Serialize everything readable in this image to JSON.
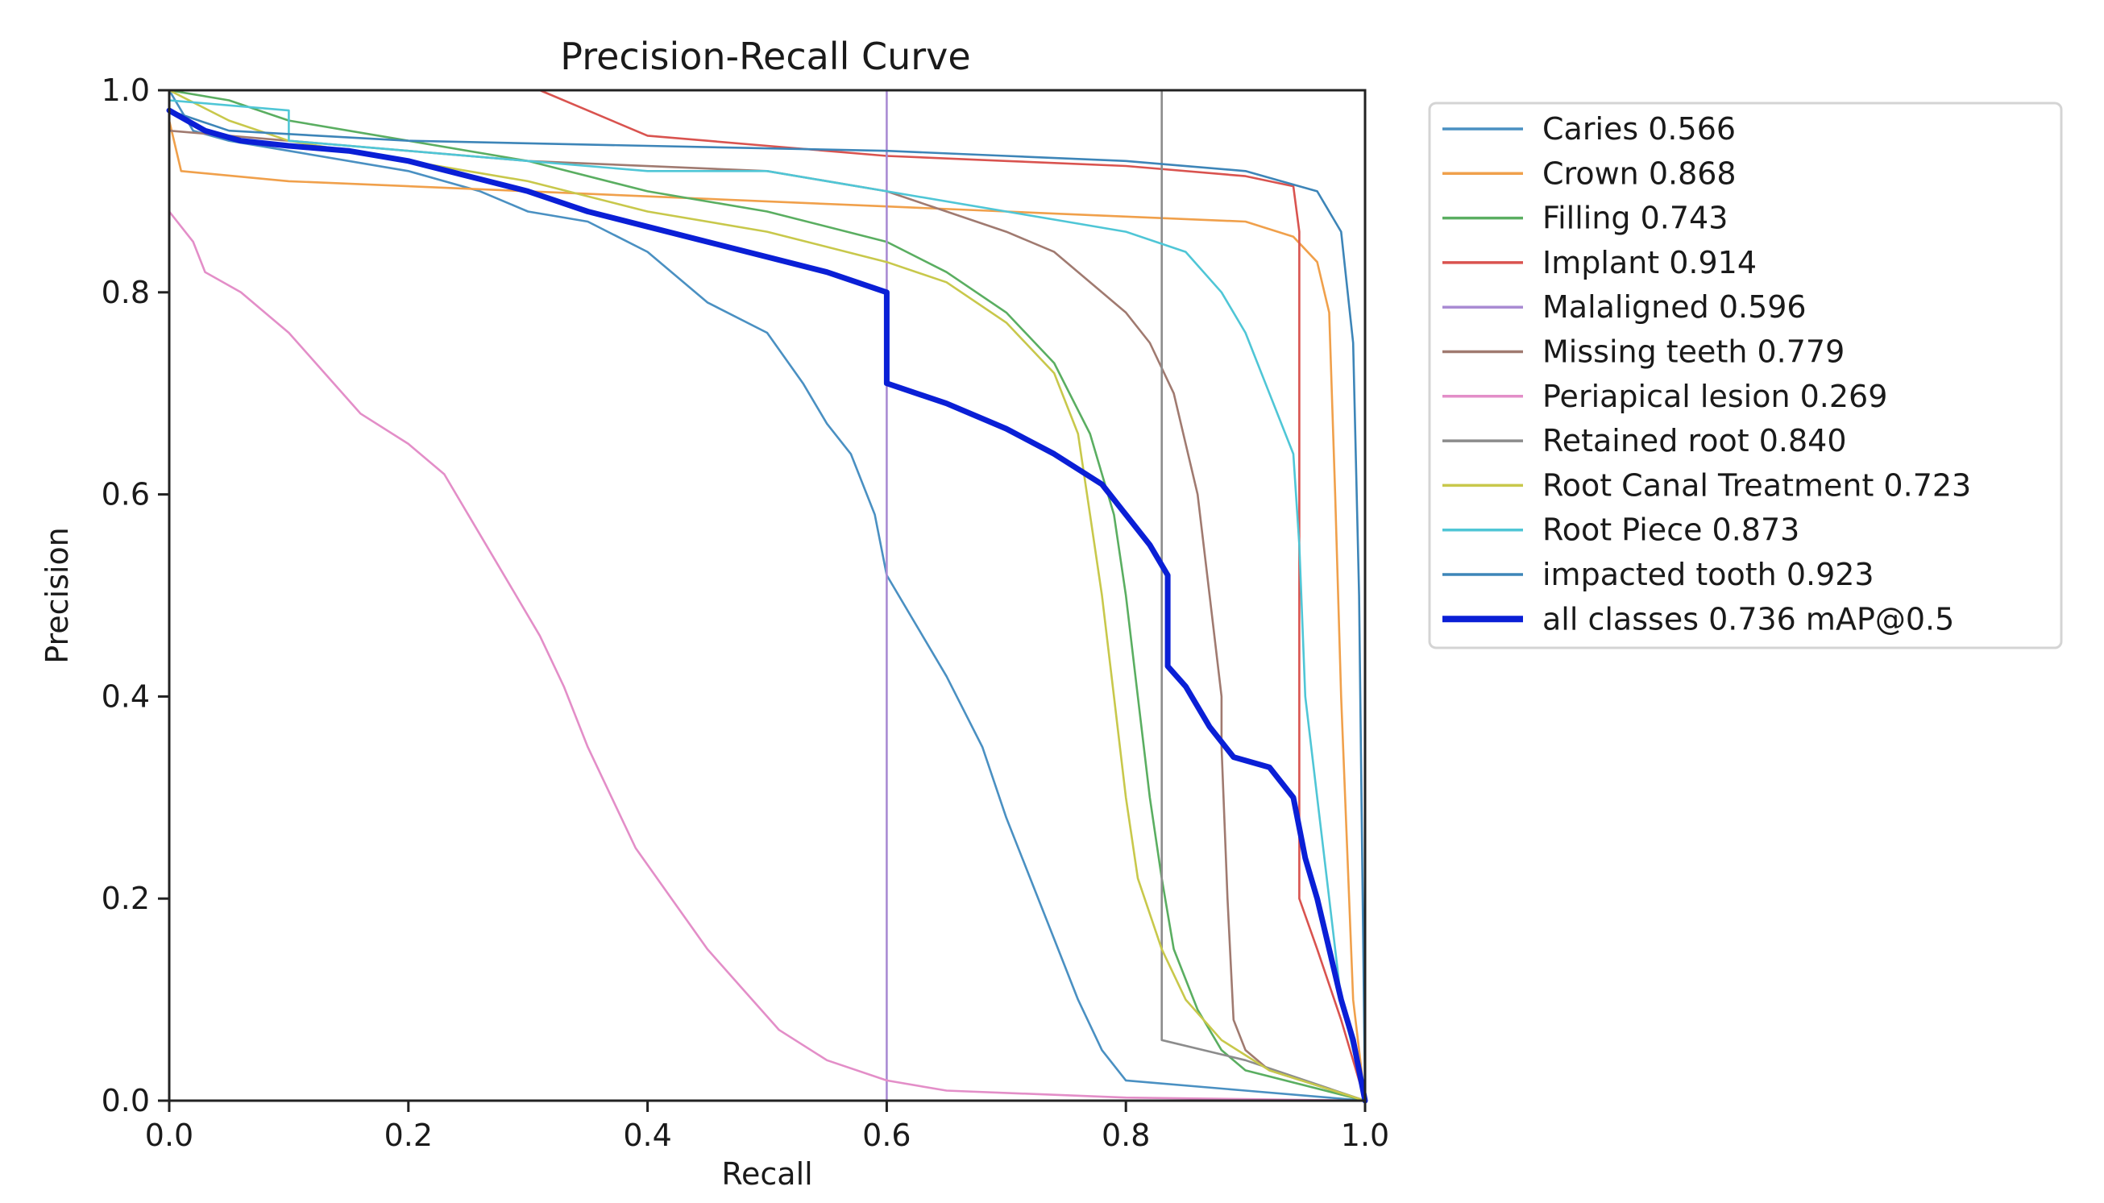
{
  "chart_data": {
    "type": "line",
    "title": "Precision-Recall Curve",
    "xlabel": "Recall",
    "ylabel": "Precision",
    "xlim": [
      0,
      1
    ],
    "ylim": [
      0,
      1
    ],
    "grid": false,
    "legend_position": "outside-right",
    "xticks": [
      {
        "value": 0.0,
        "label": "0.0"
      },
      {
        "value": 0.2,
        "label": "0.2"
      },
      {
        "value": 0.4,
        "label": "0.4"
      },
      {
        "value": 0.6,
        "label": "0.6"
      },
      {
        "value": 0.8,
        "label": "0.8"
      },
      {
        "value": 1.0,
        "label": "1.0"
      }
    ],
    "yticks": [
      {
        "value": 0.0,
        "label": "0.0"
      },
      {
        "value": 0.2,
        "label": "0.2"
      },
      {
        "value": 0.4,
        "label": "0.4"
      },
      {
        "value": 0.6,
        "label": "0.6"
      },
      {
        "value": 0.8,
        "label": "0.8"
      },
      {
        "value": 1.0,
        "label": "1.0"
      }
    ],
    "series": [
      {
        "name": "Caries",
        "label": "Caries 0.566",
        "ap": 0.566,
        "color": "#4a90c2",
        "points": [
          [
            0,
            1.0
          ],
          [
            0.02,
            0.96
          ],
          [
            0.05,
            0.95
          ],
          [
            0.1,
            0.94
          ],
          [
            0.2,
            0.92
          ],
          [
            0.26,
            0.9
          ],
          [
            0.3,
            0.88
          ],
          [
            0.35,
            0.87
          ],
          [
            0.4,
            0.84
          ],
          [
            0.45,
            0.79
          ],
          [
            0.5,
            0.76
          ],
          [
            0.53,
            0.71
          ],
          [
            0.55,
            0.67
          ],
          [
            0.57,
            0.64
          ],
          [
            0.59,
            0.58
          ],
          [
            0.6,
            0.52
          ],
          [
            0.62,
            0.48
          ],
          [
            0.65,
            0.42
          ],
          [
            0.68,
            0.35
          ],
          [
            0.7,
            0.28
          ],
          [
            0.72,
            0.22
          ],
          [
            0.74,
            0.16
          ],
          [
            0.76,
            0.1
          ],
          [
            0.78,
            0.05
          ],
          [
            0.8,
            0.02
          ],
          [
            0.9,
            0.01
          ],
          [
            1.0,
            0.0
          ]
        ]
      },
      {
        "name": "Crown",
        "label": "Crown 0.868",
        "ap": 0.868,
        "color": "#f0a04b",
        "points": [
          [
            0,
            0.97
          ],
          [
            0.01,
            0.92
          ],
          [
            0.1,
            0.91
          ],
          [
            0.2,
            0.905
          ],
          [
            0.4,
            0.895
          ],
          [
            0.6,
            0.885
          ],
          [
            0.7,
            0.88
          ],
          [
            0.8,
            0.875
          ],
          [
            0.9,
            0.87
          ],
          [
            0.94,
            0.855
          ],
          [
            0.96,
            0.83
          ],
          [
            0.97,
            0.78
          ],
          [
            0.975,
            0.6
          ],
          [
            0.98,
            0.4
          ],
          [
            0.99,
            0.1
          ],
          [
            1.0,
            0.0
          ]
        ]
      },
      {
        "name": "Filling",
        "label": "Filling 0.743",
        "ap": 0.743,
        "color": "#5aae61",
        "points": [
          [
            0,
            1.0
          ],
          [
            0.05,
            0.99
          ],
          [
            0.1,
            0.97
          ],
          [
            0.2,
            0.95
          ],
          [
            0.3,
            0.93
          ],
          [
            0.4,
            0.9
          ],
          [
            0.5,
            0.88
          ],
          [
            0.6,
            0.85
          ],
          [
            0.65,
            0.82
          ],
          [
            0.7,
            0.78
          ],
          [
            0.74,
            0.73
          ],
          [
            0.77,
            0.66
          ],
          [
            0.79,
            0.58
          ],
          [
            0.8,
            0.5
          ],
          [
            0.81,
            0.4
          ],
          [
            0.82,
            0.3
          ],
          [
            0.83,
            0.22
          ],
          [
            0.84,
            0.15
          ],
          [
            0.86,
            0.09
          ],
          [
            0.88,
            0.05
          ],
          [
            0.9,
            0.03
          ],
          [
            1.0,
            0.0
          ]
        ]
      },
      {
        "name": "Implant",
        "label": "Implant 0.914",
        "ap": 0.914,
        "color": "#d9534f",
        "points": [
          [
            0.31,
            1.0
          ],
          [
            0.35,
            0.98
          ],
          [
            0.4,
            0.955
          ],
          [
            0.5,
            0.945
          ],
          [
            0.6,
            0.935
          ],
          [
            0.7,
            0.93
          ],
          [
            0.8,
            0.925
          ],
          [
            0.9,
            0.915
          ],
          [
            0.94,
            0.905
          ],
          [
            0.945,
            0.86
          ],
          [
            0.945,
            0.2
          ],
          [
            0.96,
            0.15
          ],
          [
            0.98,
            0.08
          ],
          [
            1.0,
            0.0
          ]
        ]
      },
      {
        "name": "Malaligned",
        "label": "Malaligned 0.596",
        "ap": 0.596,
        "color": "#a98bd3",
        "points": [
          [
            0.6,
            1.0
          ],
          [
            0.6,
            0.0
          ]
        ]
      },
      {
        "name": "Missing teeth",
        "label": "Missing teeth 0.779",
        "ap": 0.779,
        "color": "#a07a70",
        "points": [
          [
            0,
            0.96
          ],
          [
            0.1,
            0.95
          ],
          [
            0.3,
            0.93
          ],
          [
            0.5,
            0.92
          ],
          [
            0.6,
            0.9
          ],
          [
            0.65,
            0.88
          ],
          [
            0.7,
            0.86
          ],
          [
            0.74,
            0.84
          ],
          [
            0.78,
            0.8
          ],
          [
            0.8,
            0.78
          ],
          [
            0.82,
            0.75
          ],
          [
            0.84,
            0.7
          ],
          [
            0.86,
            0.6
          ],
          [
            0.87,
            0.5
          ],
          [
            0.88,
            0.4
          ],
          [
            0.88,
            0.35
          ],
          [
            0.885,
            0.2
          ],
          [
            0.89,
            0.08
          ],
          [
            0.9,
            0.05
          ],
          [
            0.92,
            0.03
          ],
          [
            1.0,
            0.0
          ]
        ]
      },
      {
        "name": "Periapical lesion",
        "label": "Periapical lesion 0.269",
        "ap": 0.269,
        "color": "#e38ec8",
        "points": [
          [
            0,
            0.88
          ],
          [
            0.02,
            0.85
          ],
          [
            0.03,
            0.82
          ],
          [
            0.06,
            0.8
          ],
          [
            0.1,
            0.76
          ],
          [
            0.13,
            0.72
          ],
          [
            0.16,
            0.68
          ],
          [
            0.2,
            0.65
          ],
          [
            0.23,
            0.62
          ],
          [
            0.25,
            0.58
          ],
          [
            0.27,
            0.54
          ],
          [
            0.29,
            0.5
          ],
          [
            0.31,
            0.46
          ],
          [
            0.33,
            0.41
          ],
          [
            0.35,
            0.35
          ],
          [
            0.37,
            0.3
          ],
          [
            0.39,
            0.25
          ],
          [
            0.42,
            0.2
          ],
          [
            0.45,
            0.15
          ],
          [
            0.48,
            0.11
          ],
          [
            0.51,
            0.07
          ],
          [
            0.55,
            0.04
          ],
          [
            0.6,
            0.02
          ],
          [
            0.65,
            0.01
          ],
          [
            0.8,
            0.003
          ],
          [
            1.0,
            0.0
          ]
        ]
      },
      {
        "name": "Retained root",
        "label": "Retained root 0.840",
        "ap": 0.84,
        "color": "#8c8c8c",
        "points": [
          [
            0.83,
            1.0
          ],
          [
            0.83,
            0.06
          ],
          [
            0.9,
            0.04
          ],
          [
            1.0,
            0.0
          ]
        ]
      },
      {
        "name": "Root Canal Treatment",
        "label": "Root Canal Treatment 0.723",
        "ap": 0.723,
        "color": "#c8c84b",
        "points": [
          [
            0,
            1.0
          ],
          [
            0.05,
            0.97
          ],
          [
            0.1,
            0.95
          ],
          [
            0.2,
            0.93
          ],
          [
            0.3,
            0.91
          ],
          [
            0.4,
            0.88
          ],
          [
            0.5,
            0.86
          ],
          [
            0.6,
            0.83
          ],
          [
            0.65,
            0.81
          ],
          [
            0.7,
            0.77
          ],
          [
            0.74,
            0.72
          ],
          [
            0.76,
            0.66
          ],
          [
            0.77,
            0.58
          ],
          [
            0.78,
            0.5
          ],
          [
            0.79,
            0.4
          ],
          [
            0.8,
            0.3
          ],
          [
            0.81,
            0.22
          ],
          [
            0.83,
            0.15
          ],
          [
            0.85,
            0.1
          ],
          [
            0.88,
            0.06
          ],
          [
            0.92,
            0.03
          ],
          [
            1.0,
            0.0
          ]
        ]
      },
      {
        "name": "Root Piece",
        "label": "Root Piece 0.873",
        "ap": 0.873,
        "color": "#4fc6d6",
        "points": [
          [
            0,
            0.99
          ],
          [
            0.1,
            0.98
          ],
          [
            0.1,
            0.95
          ],
          [
            0.2,
            0.94
          ],
          [
            0.3,
            0.93
          ],
          [
            0.4,
            0.92
          ],
          [
            0.5,
            0.92
          ],
          [
            0.6,
            0.9
          ],
          [
            0.7,
            0.88
          ],
          [
            0.75,
            0.87
          ],
          [
            0.8,
            0.86
          ],
          [
            0.85,
            0.84
          ],
          [
            0.88,
            0.8
          ],
          [
            0.9,
            0.76
          ],
          [
            0.92,
            0.7
          ],
          [
            0.94,
            0.64
          ],
          [
            0.945,
            0.55
          ],
          [
            0.95,
            0.4
          ],
          [
            0.96,
            0.3
          ],
          [
            0.97,
            0.2
          ],
          [
            0.98,
            0.1
          ],
          [
            1.0,
            0.0
          ]
        ]
      },
      {
        "name": "impacted tooth",
        "label": "impacted tooth 0.923",
        "ap": 0.923,
        "color": "#3d85b8",
        "points": [
          [
            0,
            0.98
          ],
          [
            0.05,
            0.96
          ],
          [
            0.2,
            0.95
          ],
          [
            0.4,
            0.945
          ],
          [
            0.6,
            0.94
          ],
          [
            0.7,
            0.935
          ],
          [
            0.8,
            0.93
          ],
          [
            0.9,
            0.92
          ],
          [
            0.93,
            0.91
          ],
          [
            0.96,
            0.9
          ],
          [
            0.98,
            0.86
          ],
          [
            0.99,
            0.75
          ],
          [
            0.995,
            0.5
          ],
          [
            1.0,
            0.0
          ]
        ]
      },
      {
        "name": "all classes",
        "label": "all classes 0.736 mAP@0.5",
        "ap": 0.736,
        "color": "#0a1fd6",
        "bold": true,
        "points": [
          [
            0,
            0.98
          ],
          [
            0.03,
            0.96
          ],
          [
            0.06,
            0.95
          ],
          [
            0.1,
            0.945
          ],
          [
            0.15,
            0.94
          ],
          [
            0.2,
            0.93
          ],
          [
            0.25,
            0.915
          ],
          [
            0.3,
            0.9
          ],
          [
            0.35,
            0.88
          ],
          [
            0.4,
            0.865
          ],
          [
            0.45,
            0.85
          ],
          [
            0.5,
            0.835
          ],
          [
            0.55,
            0.82
          ],
          [
            0.6,
            0.8
          ],
          [
            0.6,
            0.71
          ],
          [
            0.65,
            0.69
          ],
          [
            0.7,
            0.665
          ],
          [
            0.74,
            0.64
          ],
          [
            0.78,
            0.61
          ],
          [
            0.8,
            0.58
          ],
          [
            0.82,
            0.55
          ],
          [
            0.835,
            0.52
          ],
          [
            0.835,
            0.43
          ],
          [
            0.85,
            0.41
          ],
          [
            0.87,
            0.37
          ],
          [
            0.89,
            0.34
          ],
          [
            0.92,
            0.33
          ],
          [
            0.94,
            0.3
          ],
          [
            0.95,
            0.24
          ],
          [
            0.96,
            0.2
          ],
          [
            0.97,
            0.15
          ],
          [
            0.98,
            0.1
          ],
          [
            0.99,
            0.06
          ],
          [
            1.0,
            0.0
          ]
        ]
      }
    ]
  }
}
